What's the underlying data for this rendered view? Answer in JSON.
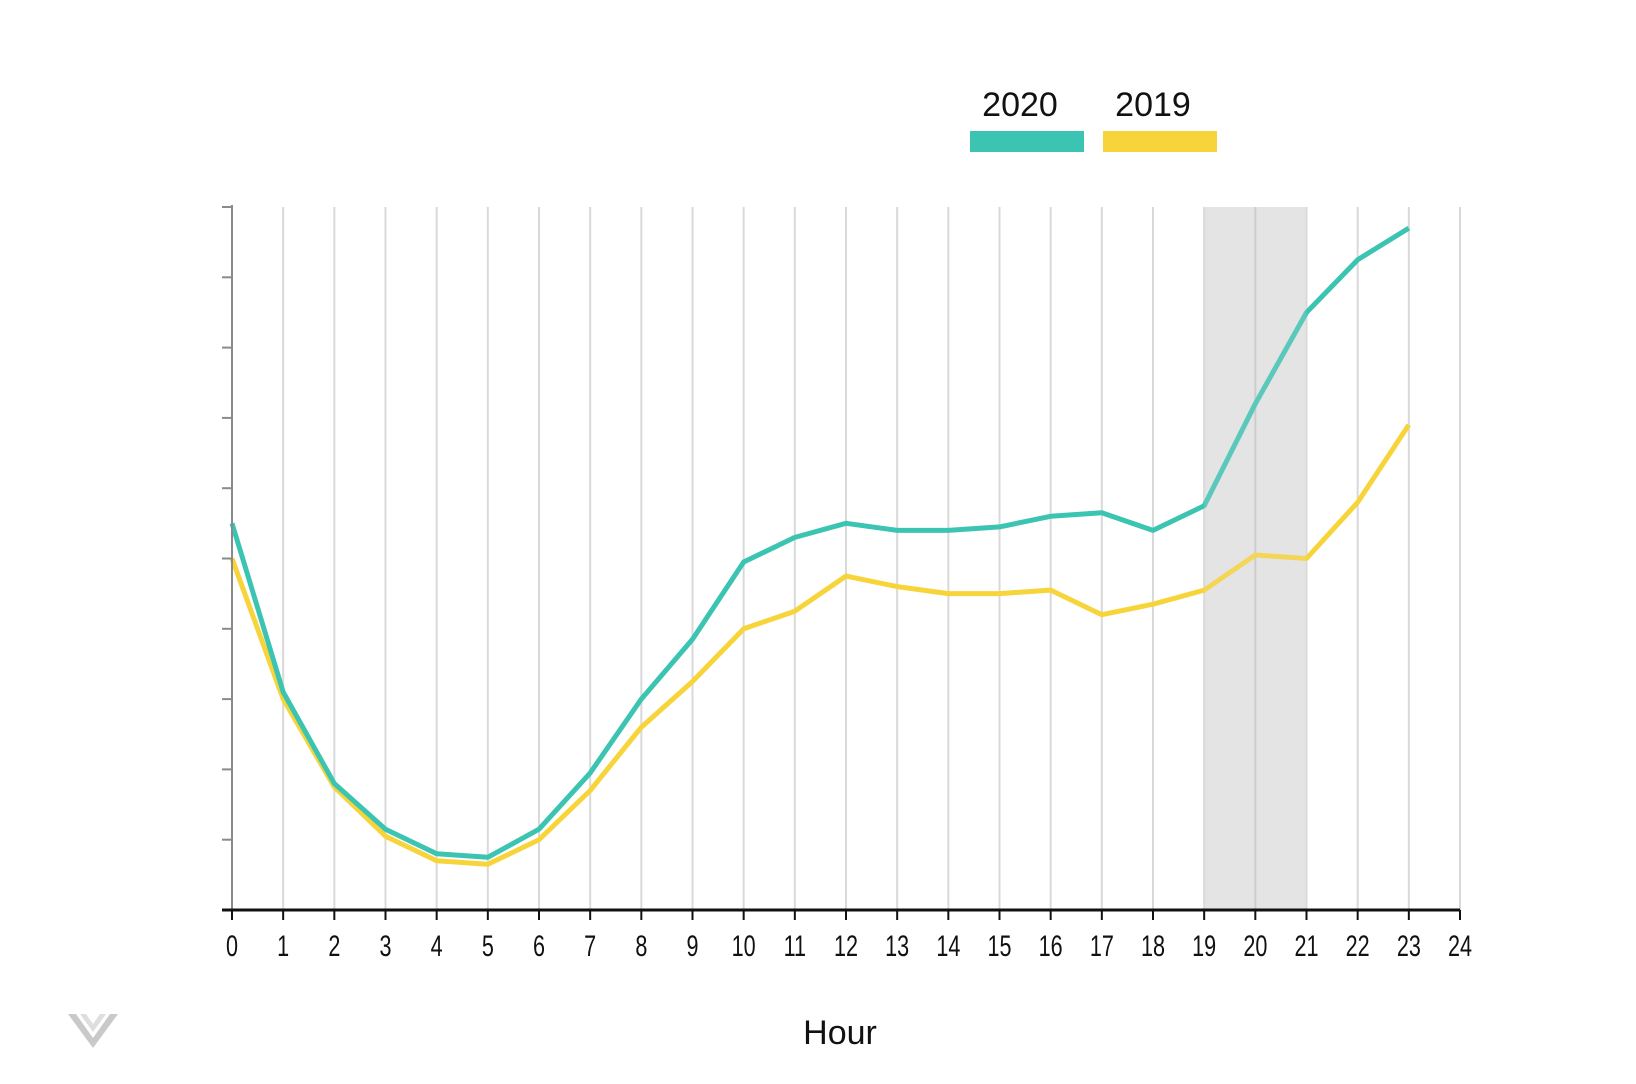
{
  "chart_data": {
    "type": "line",
    "title": "",
    "xlabel": "Hour",
    "ylabel": "",
    "x": [
      0,
      1,
      2,
      3,
      4,
      5,
      6,
      7,
      8,
      9,
      10,
      11,
      12,
      13,
      14,
      15,
      16,
      17,
      18,
      19,
      20,
      21,
      22,
      23
    ],
    "xlim": [
      0,
      24
    ],
    "x_ticks": [
      "0",
      "1",
      "2",
      "3",
      "4",
      "5",
      "6",
      "7",
      "8",
      "9",
      "10",
      "11",
      "12",
      "13",
      "14",
      "15",
      "16",
      "17",
      "18",
      "19",
      "20",
      "21",
      "22",
      "23",
      "24"
    ],
    "ylim": [
      0,
      10
    ],
    "y_tick_count": 10,
    "y_tick_labels_shown": false,
    "grid": "vertical",
    "legend_position": "top-right",
    "highlight_region": {
      "x_from": 19,
      "x_to": 21,
      "color": "#e4e4e4"
    },
    "series": [
      {
        "name": "2020",
        "color": "#3cc4b2",
        "values": [
          5.5,
          3.1,
          1.8,
          1.15,
          0.8,
          0.75,
          1.15,
          1.95,
          3.0,
          3.85,
          4.95,
          5.3,
          5.5,
          5.4,
          5.4,
          5.45,
          5.6,
          5.65,
          5.4,
          5.75,
          7.2,
          8.5,
          9.25,
          9.7
        ]
      },
      {
        "name": "2019",
        "color": "#f7d43a",
        "values": [
          5.0,
          3.0,
          1.75,
          1.05,
          0.7,
          0.65,
          1.0,
          1.7,
          2.6,
          3.25,
          4.0,
          4.25,
          4.75,
          4.6,
          4.5,
          4.5,
          4.55,
          4.2,
          4.35,
          4.55,
          5.05,
          5.0,
          5.8,
          6.9
        ]
      }
    ]
  }
}
